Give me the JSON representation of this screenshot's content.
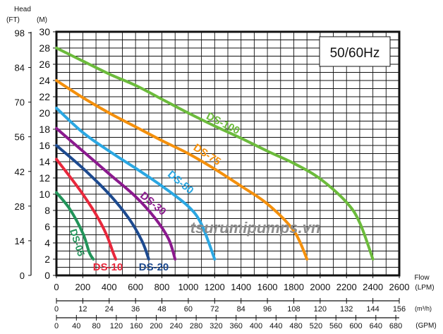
{
  "chart_data": {
    "type": "line",
    "yaxis_left_label_top": "Head",
    "y_units": {
      "ft": "(FT)",
      "m": "(M)"
    },
    "y_m_ticks": [
      "0",
      "2",
      "4",
      "6",
      "8",
      "10",
      "12",
      "14",
      "16",
      "18",
      "20",
      "22",
      "24",
      "26",
      "28",
      "30"
    ],
    "y_ft_ticks": [
      "0",
      "14",
      "28",
      "42",
      "56",
      "70",
      "84",
      "98"
    ],
    "y_ft_values": [
      0,
      14,
      28,
      42,
      56,
      70,
      84,
      98
    ],
    "ylim_m": [
      0,
      30
    ],
    "x_lpm": {
      "label": "Flow",
      "unit": "(LPM)",
      "ticks": [
        "0",
        "200",
        "400",
        "600",
        "800",
        "1000",
        "1200",
        "1400",
        "1600",
        "1800",
        "2000",
        "2200",
        "2400",
        "2600"
      ]
    },
    "x_m3h": {
      "unit": "(m³/h)",
      "ticks": [
        "0",
        "12",
        "24",
        "36",
        "48",
        "60",
        "72",
        "84",
        "96",
        "108",
        "120",
        "132",
        "144",
        "156"
      ]
    },
    "x_gpm": {
      "unit": "(GPM)",
      "ticks": [
        "0",
        "40",
        "80",
        "120",
        "160",
        "200",
        "240",
        "280",
        "320",
        "360",
        "400",
        "440",
        "480",
        "520",
        "560",
        "600",
        "640",
        "680"
      ]
    },
    "xlim_lpm": [
      0,
      2600
    ],
    "frequency_box": "50/60Hz",
    "watermark": "tsurumipumps.vn",
    "grid": true,
    "series": [
      {
        "name": "DS-05",
        "color": "#22945a",
        "label_style": "rotated",
        "x": [
          0,
          100,
          200,
          250,
          280
        ],
        "y": [
          10.2,
          8.2,
          5.2,
          2.8,
          2.0
        ]
      },
      {
        "name": "DS-10",
        "color": "#e8283c",
        "label_style": "bottom",
        "x": [
          0,
          100,
          200,
          300,
          380,
          430,
          450
        ],
        "y": [
          14.3,
          12.2,
          10.0,
          7.5,
          5.0,
          2.8,
          2.0
        ]
      },
      {
        "name": "DS-20",
        "color": "#1d4a8f",
        "label_style": "bottom",
        "x": [
          0,
          200,
          400,
          550,
          650,
          700
        ],
        "y": [
          16.0,
          13.2,
          10.0,
          7.0,
          4.2,
          2.0
        ]
      },
      {
        "name": "DS-30",
        "color": "#8b1a8e",
        "label_style": "rotated",
        "x": [
          0,
          200,
          400,
          600,
          750,
          850,
          900
        ],
        "y": [
          18.1,
          15.3,
          12.5,
          9.7,
          7.0,
          4.5,
          2.0
        ]
      },
      {
        "name": "DS-50",
        "color": "#2ba7e2",
        "label_style": "rotated",
        "x": [
          0,
          200,
          400,
          600,
          800,
          1000,
          1100,
          1200
        ],
        "y": [
          20.6,
          17.6,
          15.3,
          13.2,
          11.0,
          8.5,
          6.3,
          2.0
        ]
      },
      {
        "name": "DS-75",
        "color": "#f4900c",
        "label_style": "rotated",
        "x": [
          0,
          200,
          400,
          600,
          800,
          1000,
          1200,
          1400,
          1600,
          1800,
          1900
        ],
        "y": [
          24.0,
          21.9,
          20.0,
          18.3,
          16.6,
          15.0,
          13.1,
          11.0,
          8.8,
          5.5,
          2.0
        ]
      },
      {
        "name": "DS-100",
        "color": "#6cbb3c",
        "label_style": "rotated",
        "x": [
          0,
          200,
          400,
          600,
          800,
          1000,
          1200,
          1400,
          1600,
          1800,
          2000,
          2200,
          2300,
          2400
        ],
        "y": [
          28.0,
          26.4,
          24.8,
          23.4,
          21.7,
          20.0,
          18.4,
          16.9,
          15.3,
          13.8,
          11.9,
          9.0,
          6.5,
          2.0
        ]
      }
    ]
  }
}
